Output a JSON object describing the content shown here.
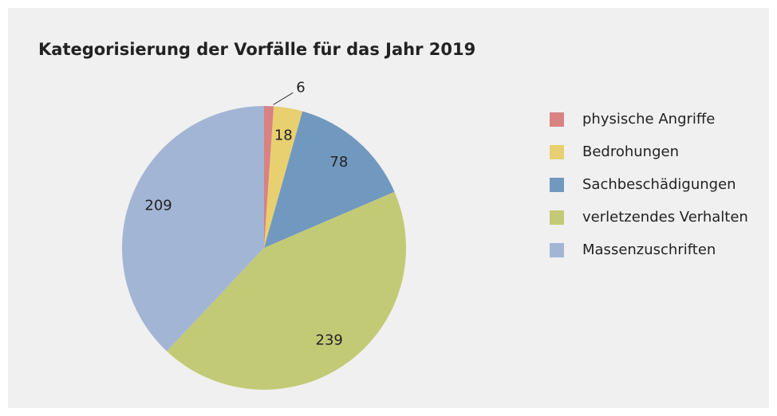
{
  "chart_data": {
    "type": "pie",
    "title": "Kategorisierung der Vorfälle für das Jahr 2019",
    "categories": [
      "physische Angriffe",
      "Bedrohungen",
      "Sachbeschädigungen",
      "verletzendes Verhalten",
      "Massenzuschriften"
    ],
    "values": [
      6,
      18,
      78,
      239,
      209
    ],
    "colors": [
      "#d98282",
      "#e8cf70",
      "#7199bf",
      "#c3ca76",
      "#a3b5d4"
    ],
    "legend": "right"
  }
}
